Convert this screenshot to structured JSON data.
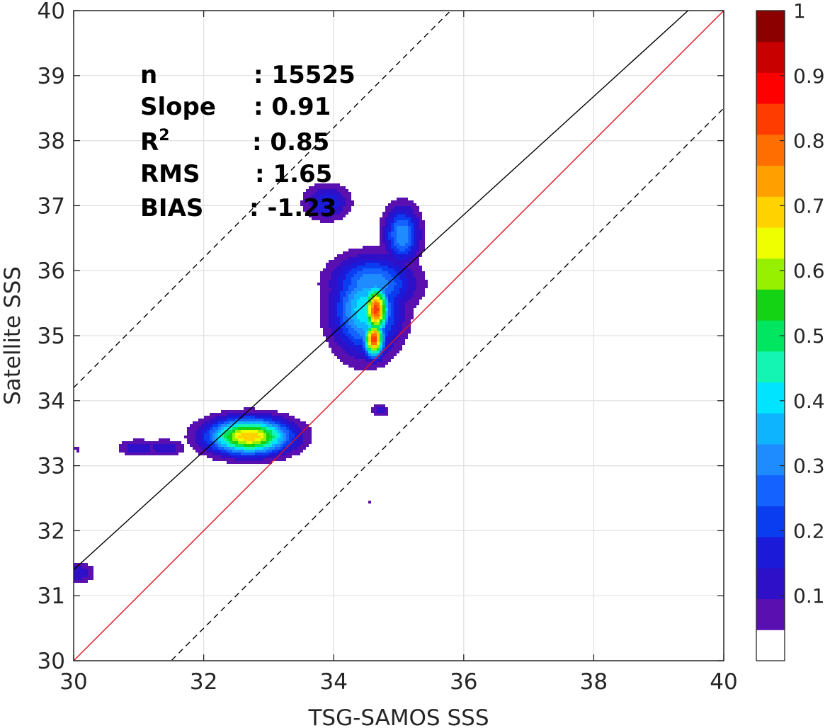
{
  "chart_data": {
    "type": "contour",
    "xlabel": "TSG-SAMOS SSS",
    "ylabel": "Satellite SSS",
    "xlim": [
      30,
      40
    ],
    "ylim": [
      30,
      40
    ],
    "x_ticks": [
      "30",
      "32",
      "34",
      "36",
      "38",
      "40"
    ],
    "y_ticks": [
      "30",
      "31",
      "32",
      "33",
      "34",
      "35",
      "36",
      "37",
      "38",
      "39",
      "40"
    ],
    "grid": true,
    "stats": [
      {
        "label": "n",
        "value": ": 15525"
      },
      {
        "label": "Slope",
        "value": ": 0.91"
      },
      {
        "label": "R",
        "sup": "2",
        "value": ": 0.85"
      },
      {
        "label": "RMS",
        "value": ": 1.65"
      },
      {
        "label": "BIAS",
        "value": ": -1.23"
      }
    ],
    "reference_lines": [
      {
        "kind": "one-to-one",
        "slope": 1,
        "intercept": 0,
        "color": "#e0141b",
        "style": "solid"
      },
      {
        "kind": "fit",
        "slope": 0.91,
        "x0": 30,
        "y0": 31.4,
        "color": "#000000",
        "style": "solid"
      },
      {
        "kind": "upper-bound",
        "slope": 1,
        "intercept": 4.2,
        "color": "#000000",
        "style": "dashed"
      },
      {
        "kind": "lower-bound",
        "slope": 1,
        "intercept": -1.5,
        "color": "#000000",
        "style": "dashed"
      }
    ],
    "density_blobs": [
      {
        "x": 30.05,
        "y": 31.35,
        "rx": 0.35,
        "ry": 0.22,
        "peak": 0.15
      },
      {
        "x": 30.05,
        "y": 33.25,
        "rx": 0.06,
        "ry": 0.05,
        "peak": 0.1
      },
      {
        "x": 31.0,
        "y": 33.27,
        "rx": 0.4,
        "ry": 0.17,
        "peak": 0.15
      },
      {
        "x": 31.4,
        "y": 33.27,
        "rx": 0.4,
        "ry": 0.17,
        "peak": 0.15
      },
      {
        "x": 32.7,
        "y": 33.45,
        "rx": 0.8,
        "ry": 0.35,
        "peak": 0.75
      },
      {
        "x": 33.9,
        "y": 37.05,
        "rx": 0.45,
        "ry": 0.35,
        "peak": 0.2
      },
      {
        "x": 35.05,
        "y": 36.55,
        "rx": 0.35,
        "ry": 0.55,
        "peak": 0.35
      },
      {
        "x": 34.6,
        "y": 35.8,
        "rx": 0.8,
        "ry": 0.55,
        "peak": 0.35
      },
      {
        "x": 34.5,
        "y": 35.4,
        "rx": 0.65,
        "ry": 0.85,
        "peak": 0.45
      },
      {
        "x": 34.65,
        "y": 35.4,
        "rx": 0.25,
        "ry": 0.5,
        "peak": 0.88
      },
      {
        "x": 34.62,
        "y": 34.95,
        "rx": 0.2,
        "ry": 0.35,
        "peak": 0.9
      },
      {
        "x": 34.1,
        "y": 35.0,
        "rx": 0.25,
        "ry": 0.2,
        "peak": 0.15
      },
      {
        "x": 34.72,
        "y": 33.85,
        "rx": 0.17,
        "ry": 0.12,
        "peak": 0.15
      },
      {
        "x": 34.55,
        "y": 32.45,
        "rx": 0.06,
        "ry": 0.05,
        "peak": 0.1
      }
    ],
    "colorbar": {
      "range": [
        0,
        1
      ],
      "tick_values": [
        0.1,
        0.2,
        0.3,
        0.4,
        0.5,
        0.6,
        0.7,
        0.8,
        0.9,
        1
      ],
      "tick_labels": [
        "0.1",
        "0.2",
        "0.3",
        "0.4",
        "0.5",
        "0.6",
        "0.7",
        "0.8",
        "0.9",
        "1"
      ],
      "levels": [
        "#ffffff",
        "#5a0fb0",
        "#2e10c8",
        "#1a1ad8",
        "#0a3cf0",
        "#1462ff",
        "#1e8cff",
        "#0fb4ff",
        "#00e4ff",
        "#14f5b4",
        "#00e660",
        "#14d214",
        "#96f000",
        "#f0ff00",
        "#ffd200",
        "#ffa000",
        "#ff6e00",
        "#ff3c00",
        "#ff0000",
        "#c80000",
        "#8c0000"
      ]
    }
  }
}
